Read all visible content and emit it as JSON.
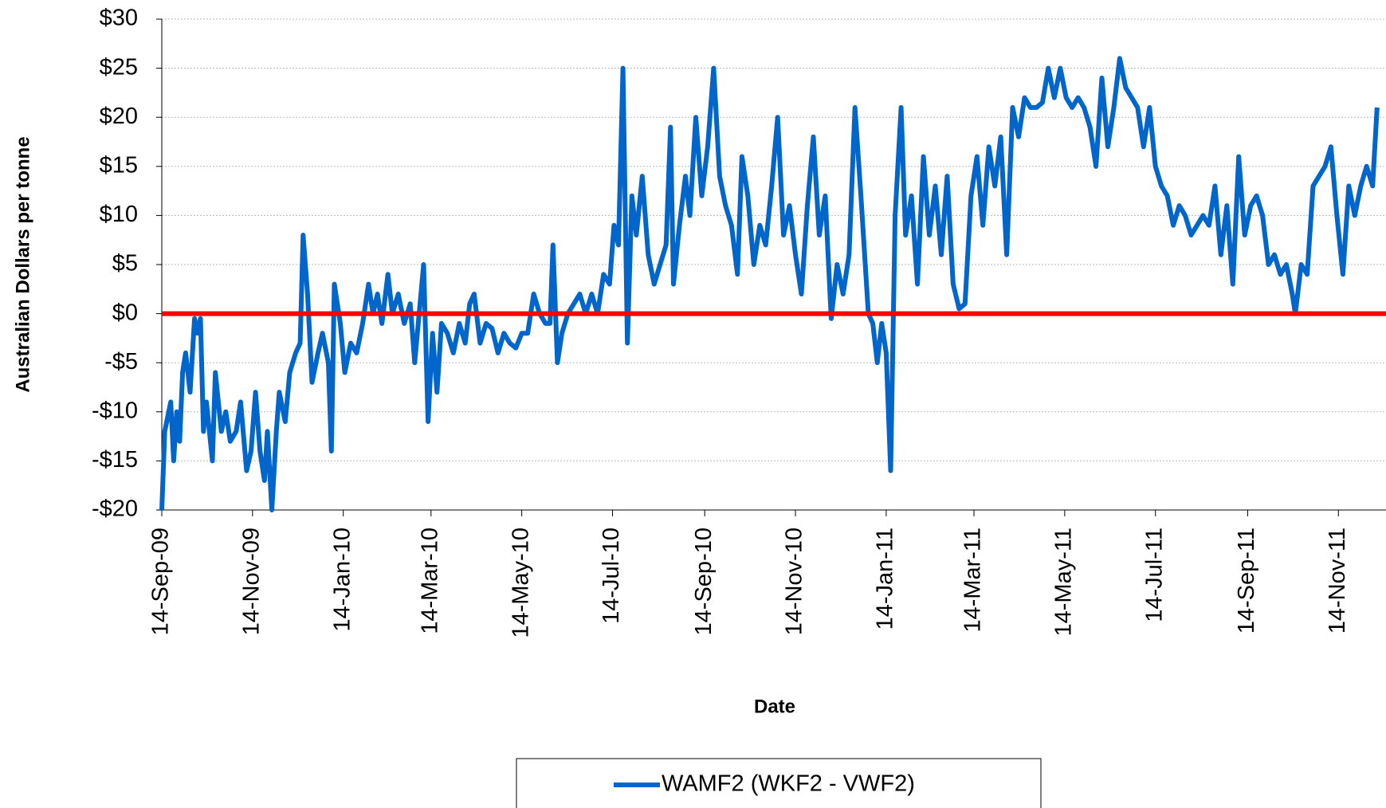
{
  "chart_data": {
    "type": "line",
    "ylabel": "Australian Dollars per tonne",
    "xlabel": "Date",
    "x": [
      "2009-09-14",
      "2009-09-16",
      "2009-09-20",
      "2009-09-22",
      "2009-09-24",
      "2009-09-26",
      "2009-09-28",
      "2009-09-30",
      "2009-10-03",
      "2009-10-06",
      "2009-10-08",
      "2009-10-10",
      "2009-10-12",
      "2009-10-14",
      "2009-10-18",
      "2009-10-20",
      "2009-10-24",
      "2009-10-27",
      "2009-10-30",
      "2009-11-03",
      "2009-11-06",
      "2009-11-10",
      "2009-11-13",
      "2009-11-16",
      "2009-11-19",
      "2009-11-22",
      "2009-11-24",
      "2009-11-27",
      "2009-11-30",
      "2009-12-02",
      "2009-12-06",
      "2009-12-09",
      "2009-12-13",
      "2009-12-16",
      "2009-12-18",
      "2009-12-21",
      "2009-12-24",
      "2009-12-28",
      "2009-12-31",
      "2010-01-04",
      "2010-01-06",
      "2010-01-08",
      "2010-01-12",
      "2010-01-15",
      "2010-01-19",
      "2010-01-23",
      "2010-01-27",
      "2010-01-31",
      "2010-02-03",
      "2010-02-06",
      "2010-02-09",
      "2010-02-13",
      "2010-02-16",
      "2010-02-20",
      "2010-02-24",
      "2010-02-28",
      "2010-03-03",
      "2010-03-06",
      "2010-03-09",
      "2010-03-12",
      "2010-03-15",
      "2010-03-18",
      "2010-03-21",
      "2010-03-25",
      "2010-03-29",
      "2010-04-02",
      "2010-04-06",
      "2010-04-09",
      "2010-04-12",
      "2010-04-16",
      "2010-04-20",
      "2010-04-24",
      "2010-04-28",
      "2010-05-02",
      "2010-05-06",
      "2010-05-10",
      "2010-05-14",
      "2010-05-18",
      "2010-05-22",
      "2010-05-26",
      "2010-05-30",
      "2010-06-02",
      "2010-06-04",
      "2010-06-07",
      "2010-06-10",
      "2010-06-14",
      "2010-06-18",
      "2010-06-22",
      "2010-06-26",
      "2010-06-30",
      "2010-07-04",
      "2010-07-08",
      "2010-07-12",
      "2010-07-15",
      "2010-07-18",
      "2010-07-21",
      "2010-07-24",
      "2010-07-27",
      "2010-07-30",
      "2010-08-03",
      "2010-08-07",
      "2010-08-11",
      "2010-08-15",
      "2010-08-19",
      "2010-08-22",
      "2010-08-24",
      "2010-08-28",
      "2010-09-01",
      "2010-09-04",
      "2010-09-08",
      "2010-09-12",
      "2010-09-16",
      "2010-09-20",
      "2010-09-24",
      "2010-09-28",
      "2010-10-02",
      "2010-10-06",
      "2010-10-09",
      "2010-10-13",
      "2010-10-17",
      "2010-10-21",
      "2010-10-25",
      "2010-10-29",
      "2010-11-02",
      "2010-11-06",
      "2010-11-10",
      "2010-11-14",
      "2010-11-18",
      "2010-11-22",
      "2010-11-26",
      "2010-11-30",
      "2010-12-04",
      "2010-12-08",
      "2010-12-12",
      "2010-12-16",
      "2010-12-20",
      "2010-12-24",
      "2010-12-28",
      "2011-01-02",
      "2011-01-05",
      "2011-01-08",
      "2011-01-11",
      "2011-01-14",
      "2011-01-17",
      "2011-01-20",
      "2011-01-24",
      "2011-01-27",
      "2011-01-31",
      "2011-02-04",
      "2011-02-08",
      "2011-02-12",
      "2011-02-16",
      "2011-02-20",
      "2011-02-24",
      "2011-02-28",
      "2011-03-04",
      "2011-03-08",
      "2011-03-12",
      "2011-03-16",
      "2011-03-20",
      "2011-03-24",
      "2011-03-28",
      "2011-04-01",
      "2011-04-05",
      "2011-04-09",
      "2011-04-13",
      "2011-04-17",
      "2011-04-21",
      "2011-04-25",
      "2011-04-29",
      "2011-05-03",
      "2011-05-07",
      "2011-05-11",
      "2011-05-15",
      "2011-05-19",
      "2011-05-23",
      "2011-05-27",
      "2011-05-31",
      "2011-06-04",
      "2011-06-08",
      "2011-06-12",
      "2011-06-16",
      "2011-06-20",
      "2011-06-24",
      "2011-06-28",
      "2011-07-02",
      "2011-07-06",
      "2011-07-10",
      "2011-07-14",
      "2011-07-18",
      "2011-07-22",
      "2011-07-26",
      "2011-07-30",
      "2011-08-03",
      "2011-08-07",
      "2011-08-11",
      "2011-08-15",
      "2011-08-19",
      "2011-08-23",
      "2011-08-27",
      "2011-08-31",
      "2011-09-04",
      "2011-09-08",
      "2011-09-12",
      "2011-09-16",
      "2011-09-20",
      "2011-09-24",
      "2011-09-28",
      "2011-10-02",
      "2011-10-06",
      "2011-10-10",
      "2011-10-14",
      "2011-10-16",
      "2011-10-20",
      "2011-10-24",
      "2011-10-28",
      "2011-11-01",
      "2011-11-05",
      "2011-11-09",
      "2011-11-13",
      "2011-11-17",
      "2011-11-21",
      "2011-11-25",
      "2011-11-29",
      "2011-12-03",
      "2011-12-07",
      "2011-12-10"
    ],
    "series": [
      {
        "name": "WAMF2 (WKF2 - VWF2)",
        "color": "#0066cc",
        "values": [
          -20,
          -12,
          -9,
          -15,
          -10,
          -13,
          -6,
          -4,
          -8,
          -0.5,
          -2,
          -0.5,
          -12,
          -9,
          -15,
          -6,
          -12,
          -10,
          -13,
          -12,
          -9,
          -16,
          -14,
          -8,
          -14,
          -17,
          -12,
          -20,
          -12,
          -8,
          -11,
          -6,
          -4,
          -3,
          8,
          2,
          -7,
          -4,
          -2,
          -5,
          -14,
          3,
          -1,
          -6,
          -3,
          -4,
          -1,
          3,
          0,
          2,
          -1,
          4,
          0,
          2,
          -1,
          1,
          -5,
          0,
          5,
          -11,
          -2,
          -8,
          -1,
          -2,
          -4,
          -1,
          -3,
          1,
          2,
          -3,
          -1,
          -1.5,
          -4,
          -2,
          -3,
          -3.5,
          -2,
          -2,
          2,
          0,
          -1,
          -1,
          7,
          -5,
          -2,
          0,
          1,
          2,
          0,
          2,
          0,
          4,
          3,
          9,
          7,
          25,
          -3,
          12,
          8,
          14,
          6,
          3,
          5,
          7,
          19,
          3,
          9,
          14,
          10,
          20,
          12,
          17,
          25,
          14,
          11,
          9,
          4,
          16,
          12,
          5,
          9,
          7,
          13,
          20,
          8,
          11,
          6,
          2,
          11,
          18,
          8,
          12,
          -0.5,
          5,
          2,
          6,
          21,
          12,
          0,
          -1,
          -5,
          -1,
          -4,
          -16,
          10,
          21,
          8,
          12,
          3,
          16,
          8,
          13,
          6,
          14,
          3,
          0.5,
          1,
          12,
          16,
          9,
          17,
          13,
          18,
          6,
          21,
          18,
          22,
          21,
          21,
          21.5,
          25,
          22,
          25,
          22,
          21,
          22,
          21,
          19,
          15,
          24,
          17,
          21,
          26,
          23,
          22,
          21,
          17,
          21,
          15,
          13,
          12,
          9,
          11,
          10,
          8,
          9,
          10,
          9,
          13,
          6,
          11,
          3,
          16,
          8,
          11,
          12,
          10,
          5,
          6,
          4,
          5,
          2,
          0,
          5,
          4,
          13,
          14,
          15,
          17,
          10,
          4,
          13,
          10,
          13,
          15,
          13,
          21
        ]
      }
    ],
    "reference_line": {
      "value": 0,
      "color": "#ff0000"
    },
    "ylim": [
      -20,
      30
    ],
    "yticks": [
      {
        "value": -20,
        "label": "-$20"
      },
      {
        "value": -15,
        "label": "-$15"
      },
      {
        "value": -10,
        "label": "-$10"
      },
      {
        "value": -5,
        "label": "-$5"
      },
      {
        "value": 0,
        "label": "$0"
      },
      {
        "value": 5,
        "label": "$5"
      },
      {
        "value": 10,
        "label": "$10"
      },
      {
        "value": 15,
        "label": "$15"
      },
      {
        "value": 20,
        "label": "$20"
      },
      {
        "value": 25,
        "label": "$25"
      },
      {
        "value": 30,
        "label": "$30"
      }
    ],
    "xlim": [
      "2009-09-14",
      "2011-12-16"
    ],
    "xticks": [
      {
        "value": "2009-09-14",
        "label": "14-Sep-09"
      },
      {
        "value": "2009-11-14",
        "label": "14-Nov-09"
      },
      {
        "value": "2010-01-14",
        "label": "14-Jan-10"
      },
      {
        "value": "2010-03-14",
        "label": "14-Mar-10"
      },
      {
        "value": "2010-05-14",
        "label": "14-May-10"
      },
      {
        "value": "2010-07-14",
        "label": "14-Jul-10"
      },
      {
        "value": "2010-09-14",
        "label": "14-Sep-10"
      },
      {
        "value": "2010-11-14",
        "label": "14-Nov-10"
      },
      {
        "value": "2011-01-14",
        "label": "14-Jan-11"
      },
      {
        "value": "2011-03-14",
        "label": "14-Mar-11"
      },
      {
        "value": "2011-05-14",
        "label": "14-May-11"
      },
      {
        "value": "2011-07-14",
        "label": "14-Jul-11"
      },
      {
        "value": "2011-09-14",
        "label": "14-Sep-11"
      },
      {
        "value": "2011-11-14",
        "label": "14-Nov-11"
      }
    ],
    "grid": true,
    "legend": "bottom"
  }
}
